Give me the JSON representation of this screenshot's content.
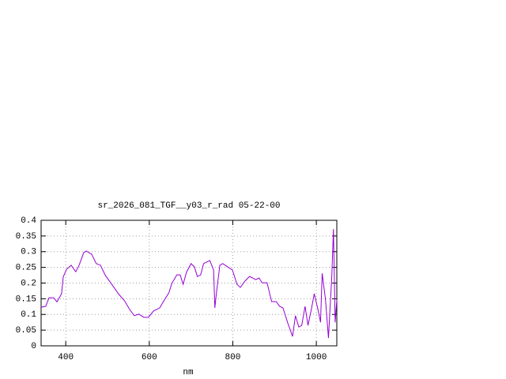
{
  "chart_data": {
    "type": "line",
    "title": "sr_2026_081_TGF__y03_r_rad 05-22-00",
    "x_label": "nm",
    "x": [
      341,
      352,
      360,
      371,
      379,
      390,
      394,
      402,
      413,
      424,
      432,
      443,
      449,
      462,
      473,
      483,
      495,
      506,
      526,
      541,
      553,
      564,
      575,
      587,
      598,
      610,
      625,
      636,
      647,
      654,
      666,
      674,
      681,
      689,
      700,
      708,
      715,
      723,
      730,
      745,
      754,
      757,
      761,
      769,
      776,
      787,
      799,
      810,
      818,
      829,
      840,
      848,
      855,
      863,
      870,
      882,
      893,
      904,
      912,
      920,
      931,
      943,
      950,
      958,
      965,
      973,
      980,
      988,
      995,
      1003,
      1010,
      1014,
      1022,
      1029,
      1037,
      1041,
      1045,
      1049
    ],
    "series": [
      {
        "color": "#9400d3",
        "values": [
          0.123,
          0.126,
          0.153,
          0.153,
          0.14,
          0.166,
          0.22,
          0.244,
          0.257,
          0.236,
          0.257,
          0.297,
          0.302,
          0.292,
          0.262,
          0.257,
          0.224,
          0.204,
          0.166,
          0.143,
          0.116,
          0.096,
          0.101,
          0.091,
          0.091,
          0.111,
          0.121,
          0.146,
          0.169,
          0.199,
          0.226,
          0.226,
          0.196,
          0.234,
          0.262,
          0.252,
          0.221,
          0.226,
          0.262,
          0.272,
          0.242,
          0.121,
          0.171,
          0.257,
          0.262,
          0.252,
          0.242,
          0.196,
          0.186,
          0.206,
          0.221,
          0.216,
          0.211,
          0.216,
          0.201,
          0.201,
          0.141,
          0.141,
          0.126,
          0.121,
          0.075,
          0.03,
          0.096,
          0.06,
          0.065,
          0.126,
          0.065,
          0.116,
          0.166,
          0.121,
          0.075,
          0.231,
          0.146,
          0.025,
          0.221,
          0.372,
          0.075,
          0.146
        ]
      }
    ],
    "xlim": [
      341,
      1049
    ],
    "ylim": [
      0,
      0.4
    ],
    "xticks": [
      400,
      600,
      800,
      1000
    ],
    "yticks": [
      0,
      0.05,
      0.1,
      0.15,
      0.2,
      0.25,
      0.3,
      0.35,
      0.4
    ],
    "grid": true
  }
}
